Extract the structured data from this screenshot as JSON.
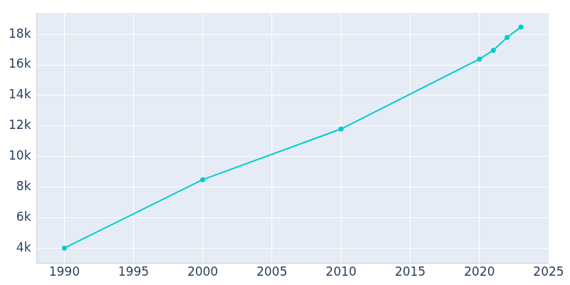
{
  "chart_data": {
    "type": "line",
    "x": [
      1990,
      2000,
      2010,
      2020,
      2021,
      2022,
      2023
    ],
    "values": [
      4000,
      8480,
      11800,
      16380,
      16950,
      17800,
      18480
    ],
    "color": "#00cccc",
    "marker": "circle",
    "xlim": [
      1988,
      2025
    ],
    "xticks": [
      1990,
      1995,
      2000,
      2005,
      2010,
      2015,
      2020,
      2025
    ],
    "ylim": [
      3000,
      19400
    ],
    "yticks": [
      {
        "value": 4000,
        "label": "4k"
      },
      {
        "value": 6000,
        "label": "6k"
      },
      {
        "value": 8000,
        "label": "8k"
      },
      {
        "value": 10000,
        "label": "10k"
      },
      {
        "value": 12000,
        "label": "12k"
      },
      {
        "value": 14000,
        "label": "14k"
      },
      {
        "value": 16000,
        "label": "16k"
      },
      {
        "value": 18000,
        "label": "18k"
      }
    ],
    "grid": true
  }
}
